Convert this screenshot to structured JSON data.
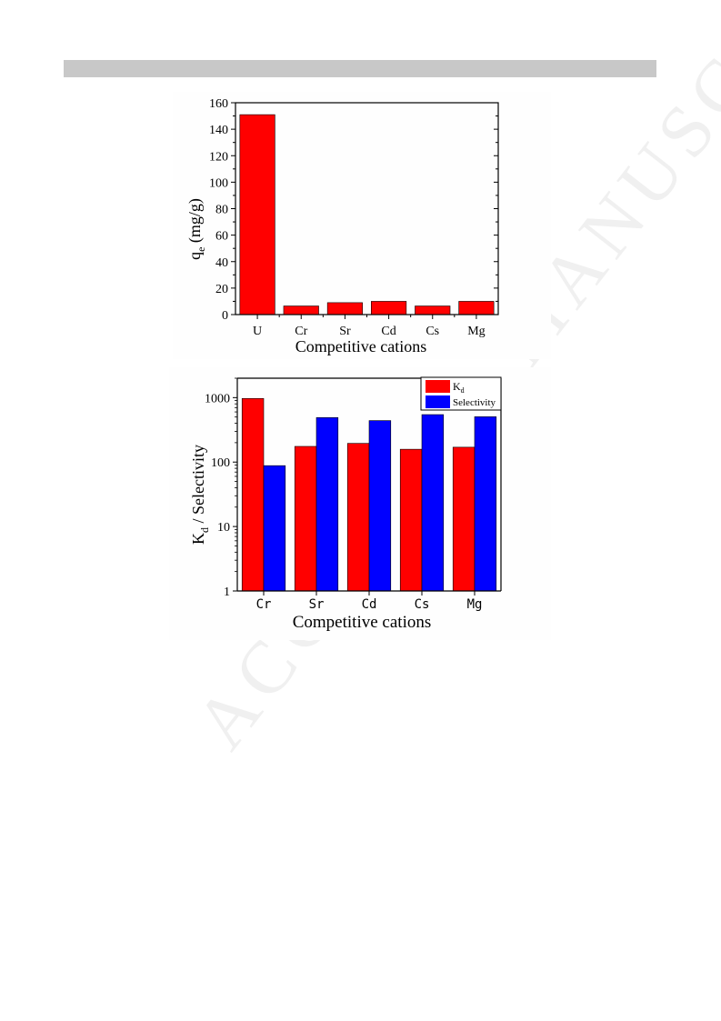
{
  "watermark": "ACCEPTED MANUSCRIPT",
  "colors": {
    "kd": "#ff0000",
    "selectivity": "#0000ff",
    "axis": "#000000"
  },
  "chart_data": [
    {
      "type": "bar",
      "title": "",
      "xlabel": "Competitive cations",
      "ylabel": "q",
      "ylabel_sub": "e",
      "ylabel_unit": " (mg/g)",
      "categories": [
        "U",
        "Cr",
        "Sr",
        "Cd",
        "Cs",
        "Mg"
      ],
      "values": [
        151,
        6.5,
        9,
        10,
        6.5,
        10
      ],
      "ylim": [
        0,
        160
      ],
      "yticks": [
        0,
        20,
        40,
        60,
        80,
        100,
        120,
        140,
        160
      ],
      "grid": false,
      "legend": "none"
    },
    {
      "type": "bar",
      "title": "",
      "xlabel": "Competitive cations",
      "ylabel": "K",
      "ylabel_sub": "d",
      "ylabel_rest": " / Selectivity",
      "yscale": "log",
      "ylim": [
        1,
        2000
      ],
      "yticks": [
        1,
        10,
        100,
        1000
      ],
      "categories": [
        "Cr",
        "Sr",
        "Cd",
        "Cs",
        "Mg"
      ],
      "series": [
        {
          "name": "K",
          "name_sub": "d",
          "values": [
            970,
            175,
            195,
            158,
            170
          ]
        },
        {
          "name": "Selectivity",
          "values": [
            88,
            490,
            440,
            545,
            505
          ]
        }
      ],
      "grid": false,
      "legend": "top-right"
    }
  ]
}
